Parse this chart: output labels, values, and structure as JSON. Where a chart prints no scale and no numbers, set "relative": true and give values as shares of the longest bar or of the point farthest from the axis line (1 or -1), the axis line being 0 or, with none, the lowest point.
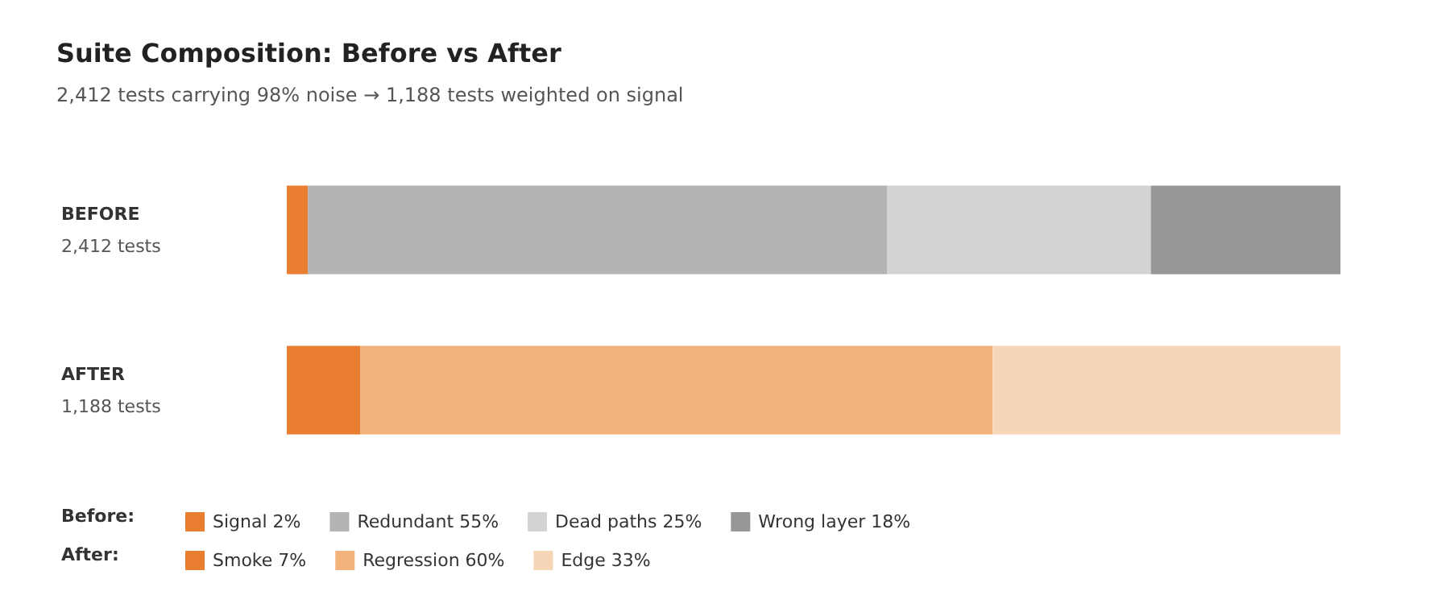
{
  "chart_data": {
    "type": "bar",
    "orientation": "horizontal",
    "stacked": true,
    "relative": true,
    "title": "Suite Composition: Before vs After",
    "subtitle": "2,412 tests carrying 98% noise → 1,188 tests weighted on signal",
    "categories": [
      "BEFORE\n2,412 tests",
      "AFTER\n1,188 tests"
    ],
    "series": [
      {
        "name": "Signal 2%",
        "color": "#e97d30",
        "values": [
          0.02,
          null
        ]
      },
      {
        "name": "Redundant 55%",
        "color": "#b3b3b3",
        "values": [
          0.55,
          null
        ]
      },
      {
        "name": "Dead paths 25%",
        "color": "#d3d3d3",
        "values": [
          0.25,
          null
        ]
      },
      {
        "name": "Wrong layer 18%",
        "color": "#979797",
        "values": [
          0.18,
          null
        ]
      },
      {
        "name": "Smoke 7%",
        "color": "#e97d30",
        "values": [
          null,
          0.07
        ]
      },
      {
        "name": "Regression 60%",
        "color": "#f3b27a",
        "values": [
          null,
          0.6
        ]
      },
      {
        "name": "Edge 33%",
        "color": "#f7d6b7",
        "values": [
          null,
          0.33
        ]
      }
    ],
    "annotations": [
      "Before:",
      "After:"
    ],
    "legend": "bottom left"
  }
}
